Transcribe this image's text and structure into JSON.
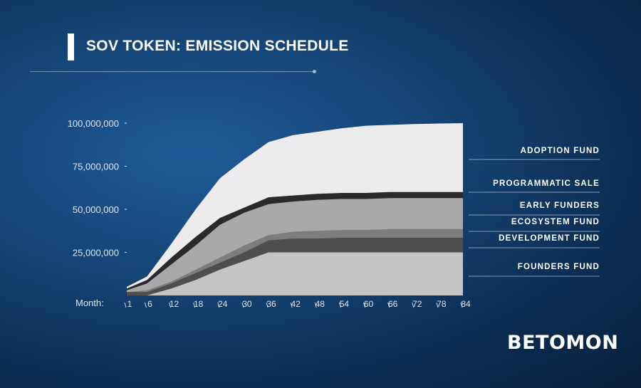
{
  "header": {
    "title": "SOV TOKEN: EMISSION SCHEDULE"
  },
  "axis": {
    "x_prefix": "Month:"
  },
  "brand": {
    "logo": "BETOMON"
  },
  "colors": {
    "founders": "#c4c4c6",
    "development": "#4e4e50",
    "ecosystem": "#7d7d7f",
    "early": "#a9a9ab",
    "programmatic": "#2a2a2c",
    "adoption": "#ececee"
  },
  "chart_data": {
    "type": "area",
    "stacked": true,
    "title": "SOV TOKEN: EMISSION SCHEDULE",
    "xlabel": "Month:",
    "ylabel": "",
    "x": [
      1,
      6,
      12,
      18,
      24,
      30,
      36,
      42,
      48,
      54,
      60,
      66,
      72,
      78,
      84
    ],
    "ylim": [
      0,
      100000000
    ],
    "y_ticks": [
      "100,000,000",
      "75,000,000",
      "50,000,000",
      "25,000,000"
    ],
    "y_tick_values": [
      100000000,
      75000000,
      50000000,
      25000000
    ],
    "legend_position": "right",
    "series_cumulative": [
      {
        "name": "FOUNDERS FUND",
        "values": [
          0,
          0,
          4000000,
          9000000,
          15000000,
          20000000,
          25000000,
          25000000,
          25000000,
          25000000,
          25000000,
          25000000,
          25000000,
          25000000,
          25000000
        ]
      },
      {
        "name": "DEVELOPMENT FUND",
        "values": [
          2000000,
          2000000,
          7000000,
          13000000,
          19000000,
          25000000,
          32000000,
          33000000,
          33000000,
          33500000,
          33500000,
          33500000,
          33500000,
          33500000,
          33500000
        ]
      },
      {
        "name": "ECOSYSTEM FUND",
        "values": [
          2000000,
          3000000,
          8000000,
          15000000,
          22000000,
          29000000,
          35000000,
          37000000,
          37500000,
          38000000,
          38000000,
          38500000,
          38500000,
          38500000,
          38500000
        ]
      },
      {
        "name": "EARLY FUNDERS",
        "values": [
          3000000,
          7000000,
          18000000,
          29000000,
          41000000,
          48000000,
          53000000,
          54500000,
          55500000,
          56000000,
          56000000,
          56500000,
          56500000,
          56500000,
          56500000
        ]
      },
      {
        "name": "PROGRAMMATIC SALE",
        "values": [
          4000000,
          9000000,
          22000000,
          34000000,
          45000000,
          51000000,
          57000000,
          58000000,
          59000000,
          59500000,
          59500000,
          60000000,
          60000000,
          60000000,
          60000000
        ]
      },
      {
        "name": "ADOPTION FUND",
        "values": [
          5000000,
          11000000,
          30000000,
          50000000,
          68000000,
          79000000,
          89000000,
          93000000,
          95000000,
          97000000,
          98500000,
          99000000,
          99500000,
          99800000,
          100000000
        ]
      }
    ]
  }
}
